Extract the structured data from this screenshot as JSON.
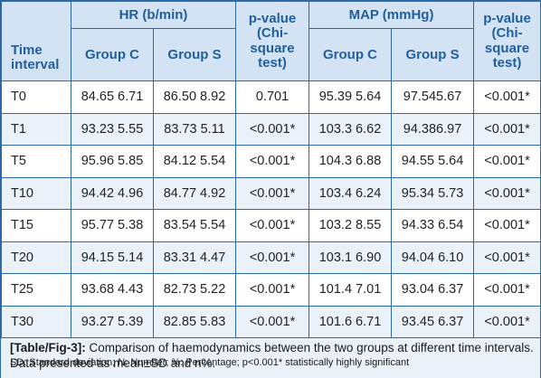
{
  "table": {
    "header": {
      "time_interval": "Time interval",
      "hr_group": "HR (b/min)",
      "map_group": "MAP (mmHg)",
      "p_value": "p-value (Chi-square test)",
      "group_c": "Group C",
      "group_s": "Group S"
    },
    "rows": [
      {
        "time": "T0",
        "hr_c": "84.65 6.71",
        "hr_s": "86.50 8.92",
        "p_hr": "0.701",
        "map_c": "95.39 5.64",
        "map_s": "97.545.67",
        "p_map": "<0.001*"
      },
      {
        "time": "T1",
        "hr_c": "93.23 5.55",
        "hr_s": "83.73 5.11",
        "p_hr": "<0.001*",
        "map_c": "103.3 6.62",
        "map_s": "94.386.97",
        "p_map": "<0.001*"
      },
      {
        "time": "T5",
        "hr_c": "95.96 5.85",
        "hr_s": "84.12 5.54",
        "p_hr": "<0.001*",
        "map_c": "104.3 6.88",
        "map_s": "94.55 5.64",
        "p_map": "<0.001*"
      },
      {
        "time": "T10",
        "hr_c": "94.42 4.96",
        "hr_s": "84.77 4.92",
        "p_hr": "<0.001*",
        "map_c": "103.4 6.24",
        "map_s": "95.34 5.73",
        "p_map": "<0.001*"
      },
      {
        "time": "T15",
        "hr_c": "95.77 5.38",
        "hr_s": "83.54 5.54",
        "p_hr": "<0.001*",
        "map_c": "103.2 8.55",
        "map_s": "94.33 6.54",
        "p_map": "<0.001*"
      },
      {
        "time": "T20",
        "hr_c": "94.15 5.14",
        "hr_s": "83.31 4.47",
        "p_hr": "<0.001*",
        "map_c": "103.1 6.90",
        "map_s": "94.04 6.10",
        "p_map": "<0.001*"
      },
      {
        "time": "T25",
        "hr_c": "93.68 4.43",
        "hr_s": "82.73 5.22",
        "p_hr": "<0.001*",
        "map_c": "101.4 7.01",
        "map_s": "93.04 6.37",
        "p_map": "<0.001*"
      },
      {
        "time": "T30",
        "hr_c": "93.27 5.39",
        "hr_s": "82.85 5.83",
        "p_hr": "<0.001*",
        "map_c": "101.6 6.71",
        "map_s": "93.45 6.37",
        "p_map": "<0.001*"
      }
    ]
  },
  "caption": {
    "label": "[Table/Fig-3]:",
    "text": "Comparison of haemodynamics between the two groups at different time intervals. Data presented as mean±SD and n%.",
    "footnote": "SD: Standard deviation; N: Number; %: Percentage; p<0.001* statistically highly significant"
  },
  "colors": {
    "border": "#2b6aa8",
    "header_bg": "#d3e3f3",
    "header_text": "#1f5f9f",
    "row_alt_bg": "#eaf1f9"
  }
}
